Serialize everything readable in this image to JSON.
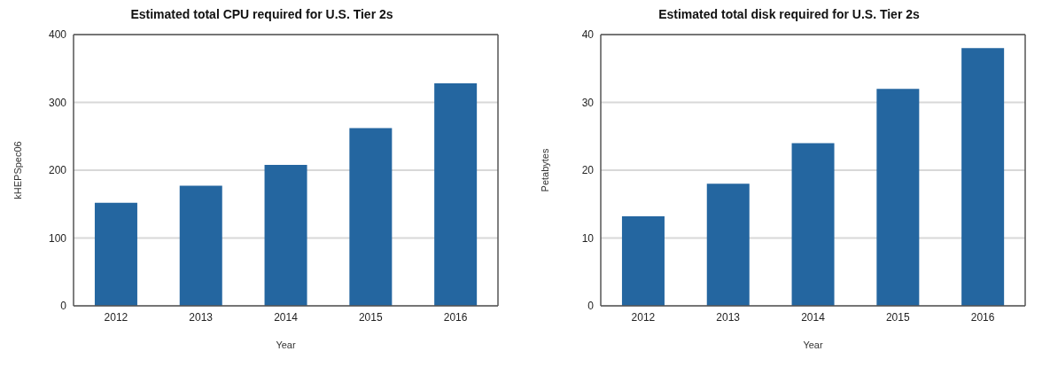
{
  "chart_data": [
    {
      "type": "bar",
      "title": "Estimated total CPU required for U.S. Tier 2s",
      "xlabel": "Year",
      "ylabel": "kHEPSpec06",
      "categories": [
        "2012",
        "2013",
        "2014",
        "2015",
        "2016"
      ],
      "values": [
        152,
        177,
        208,
        262,
        328
      ],
      "color": "#2466a0",
      "ylim": [
        0,
        400
      ],
      "yticks": [
        0,
        100,
        200,
        300,
        400
      ],
      "grid": "y"
    },
    {
      "type": "bar",
      "title": "Estimated total disk required for U.S. Tier 2s",
      "xlabel": "Year",
      "ylabel": "Petabytes",
      "categories": [
        "2012",
        "2013",
        "2014",
        "2015",
        "2016"
      ],
      "values": [
        13.2,
        18,
        24,
        32,
        38
      ],
      "color": "#2466a0",
      "ylim": [
        0,
        40
      ],
      "yticks": [
        0,
        10,
        20,
        30,
        40
      ],
      "grid": "y"
    }
  ]
}
